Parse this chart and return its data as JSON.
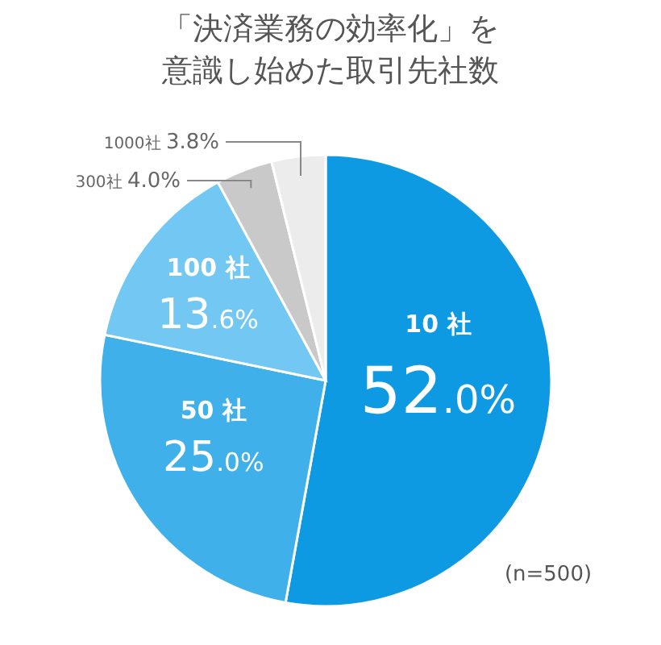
{
  "chart_data": {
    "type": "pie",
    "title": "「決済業務の効率化」を意識し始めた取引先社数",
    "categories": [
      "10 社",
      "50 社",
      "100 社",
      "300社",
      "1000社"
    ],
    "values": [
      52.0,
      25.0,
      13.6,
      4.0,
      3.8
    ],
    "value_labels": [
      "52.0%",
      "25.0%",
      "13.6%",
      "4.0%",
      "3.8%"
    ],
    "colors": [
      "#0e9ae2",
      "#3fb0ea",
      "#72c8f2",
      "#c9c9c9",
      "#ececec"
    ],
    "annotations": [
      "(n=500)"
    ]
  }
}
